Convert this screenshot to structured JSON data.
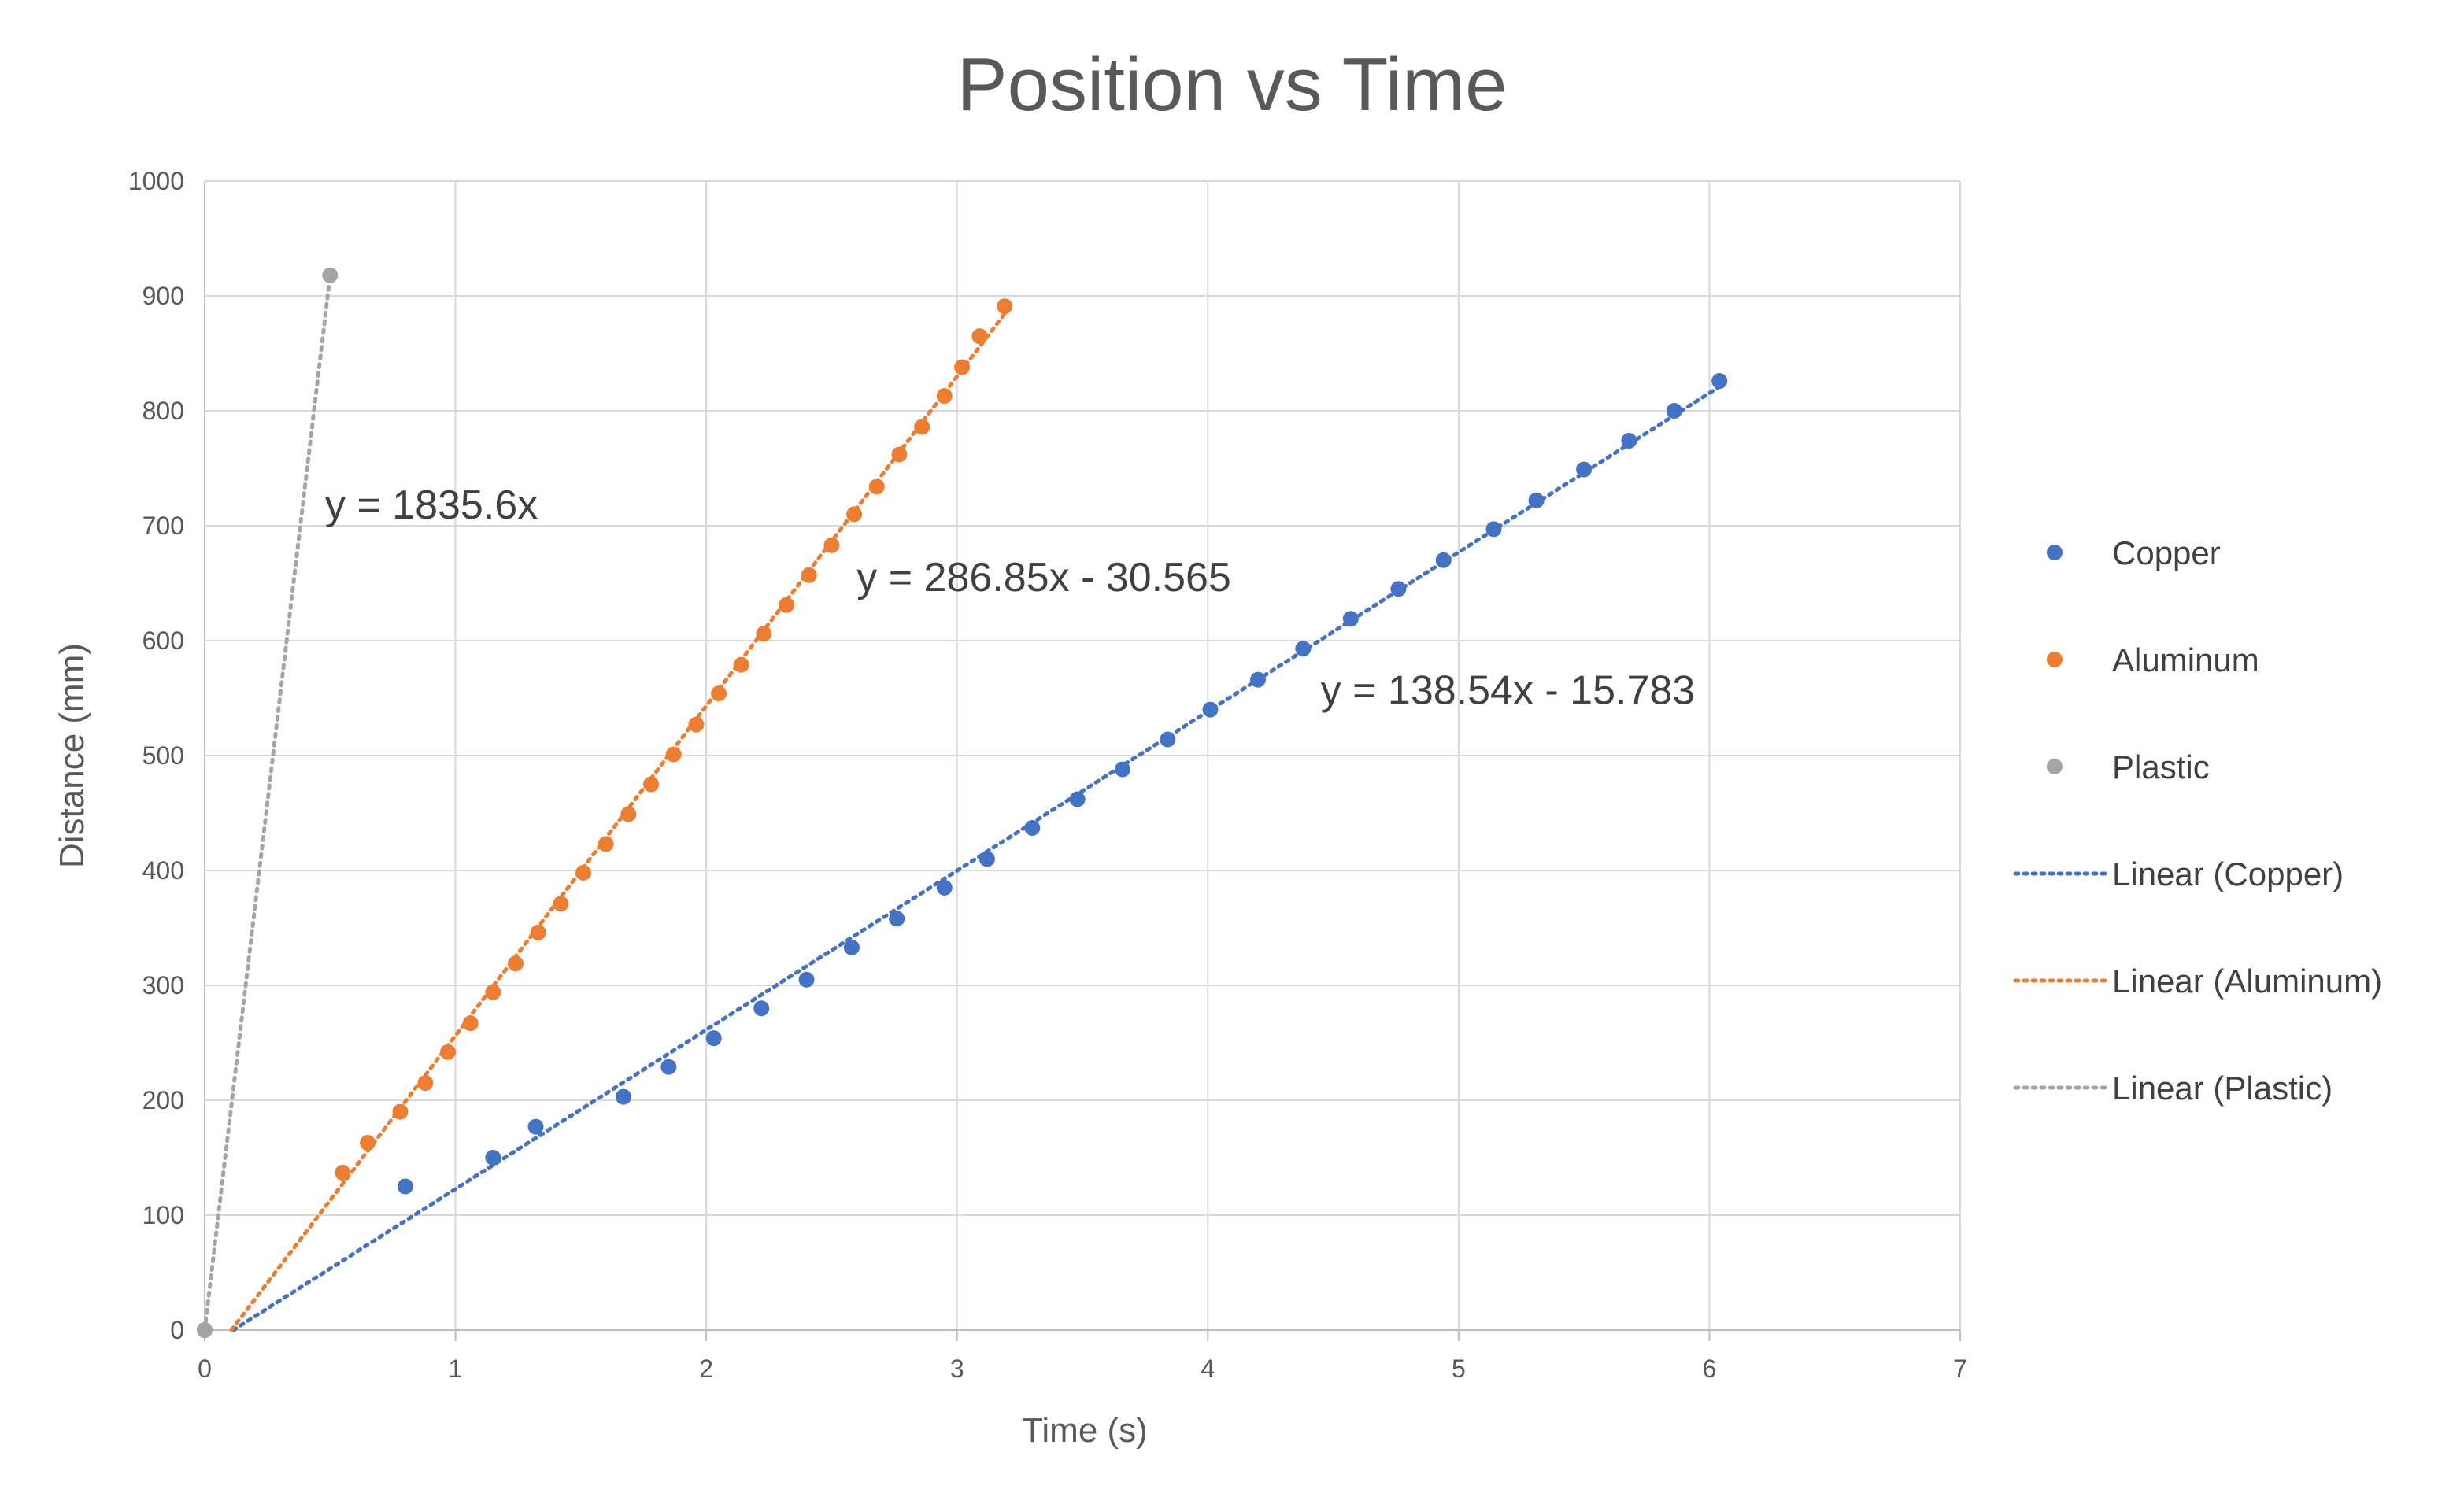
{
  "chart_data": {
    "type": "scatter",
    "title": "Position vs Time",
    "xlabel": "Time (s)",
    "ylabel": "Distance (mm)",
    "xlim": [
      0,
      7
    ],
    "ylim": [
      0,
      1000
    ],
    "xticks": [
      "0",
      "1",
      "2",
      "3",
      "4",
      "5",
      "6",
      "7"
    ],
    "yticks": [
      "0",
      "100",
      "200",
      "300",
      "400",
      "500",
      "600",
      "700",
      "800",
      "900",
      "1000"
    ],
    "grid": true,
    "legend_position": "right",
    "series": [
      {
        "name": "Copper",
        "color": "#4472C4",
        "points": [
          [
            0,
            0
          ],
          [
            0.8,
            125
          ],
          [
            1.15,
            150
          ],
          [
            1.32,
            177
          ],
          [
            1.67,
            203
          ],
          [
            1.85,
            229
          ],
          [
            2.03,
            254
          ],
          [
            2.22,
            280
          ],
          [
            2.4,
            305
          ],
          [
            2.58,
            333
          ],
          [
            2.76,
            358
          ],
          [
            2.95,
            385
          ],
          [
            3.12,
            410
          ],
          [
            3.3,
            437
          ],
          [
            3.48,
            462
          ],
          [
            3.66,
            488
          ],
          [
            3.84,
            514
          ],
          [
            4.01,
            540
          ],
          [
            4.2,
            566
          ],
          [
            4.38,
            593
          ],
          [
            4.57,
            619
          ],
          [
            4.76,
            645
          ],
          [
            4.94,
            670
          ],
          [
            5.14,
            697
          ],
          [
            5.31,
            722
          ],
          [
            5.5,
            749
          ],
          [
            5.68,
            774
          ],
          [
            5.86,
            800
          ],
          [
            6.04,
            826
          ]
        ]
      },
      {
        "name": "Aluminum",
        "color": "#ED7D31",
        "points": [
          [
            0,
            0
          ],
          [
            0.55,
            137
          ],
          [
            0.65,
            163
          ],
          [
            0.78,
            190
          ],
          [
            0.88,
            215
          ],
          [
            0.97,
            242
          ],
          [
            1.06,
            267
          ],
          [
            1.15,
            294
          ],
          [
            1.24,
            319
          ],
          [
            1.33,
            346
          ],
          [
            1.42,
            371
          ],
          [
            1.51,
            398
          ],
          [
            1.6,
            423
          ],
          [
            1.69,
            449
          ],
          [
            1.78,
            475
          ],
          [
            1.87,
            501
          ],
          [
            1.96,
            527
          ],
          [
            2.05,
            554
          ],
          [
            2.14,
            579
          ],
          [
            2.23,
            606
          ],
          [
            2.32,
            631
          ],
          [
            2.41,
            657
          ],
          [
            2.5,
            683
          ],
          [
            2.59,
            710
          ],
          [
            2.68,
            734
          ],
          [
            2.77,
            762
          ],
          [
            2.86,
            786
          ],
          [
            2.95,
            813
          ],
          [
            3.02,
            838
          ],
          [
            3.09,
            865
          ],
          [
            3.19,
            891
          ]
        ]
      },
      {
        "name": "Plastic",
        "color": "#A5A5A5",
        "points": [
          [
            0,
            0
          ],
          [
            0.5,
            918
          ]
        ]
      }
    ],
    "trendlines": [
      {
        "name": "Linear (Copper)",
        "color": "#4472C4",
        "slope": 138.54,
        "intercept": -15.783,
        "x_range": [
          0.114,
          6.04
        ],
        "equation": "y = 138.54x - 15.783",
        "label_at": [
          4.45,
          545
        ]
      },
      {
        "name": "Linear (Aluminum)",
        "color": "#ED7D31",
        "slope": 286.85,
        "intercept": -30.565,
        "x_range": [
          0.107,
          3.19
        ],
        "equation": "y = 286.85x - 30.565",
        "label_at": [
          2.6,
          643
        ]
      },
      {
        "name": "Linear (Plastic)",
        "color": "#A5A5A5",
        "slope": 1835.6,
        "intercept": 0,
        "x_range": [
          0,
          0.5
        ],
        "equation": "y = 1835.6x",
        "label_at": [
          0.48,
          706
        ]
      }
    ],
    "legend": [
      "Copper",
      "Aluminum",
      "Plastic",
      "Linear (Copper)",
      "Linear (Aluminum)",
      "Linear (Plastic)"
    ]
  }
}
